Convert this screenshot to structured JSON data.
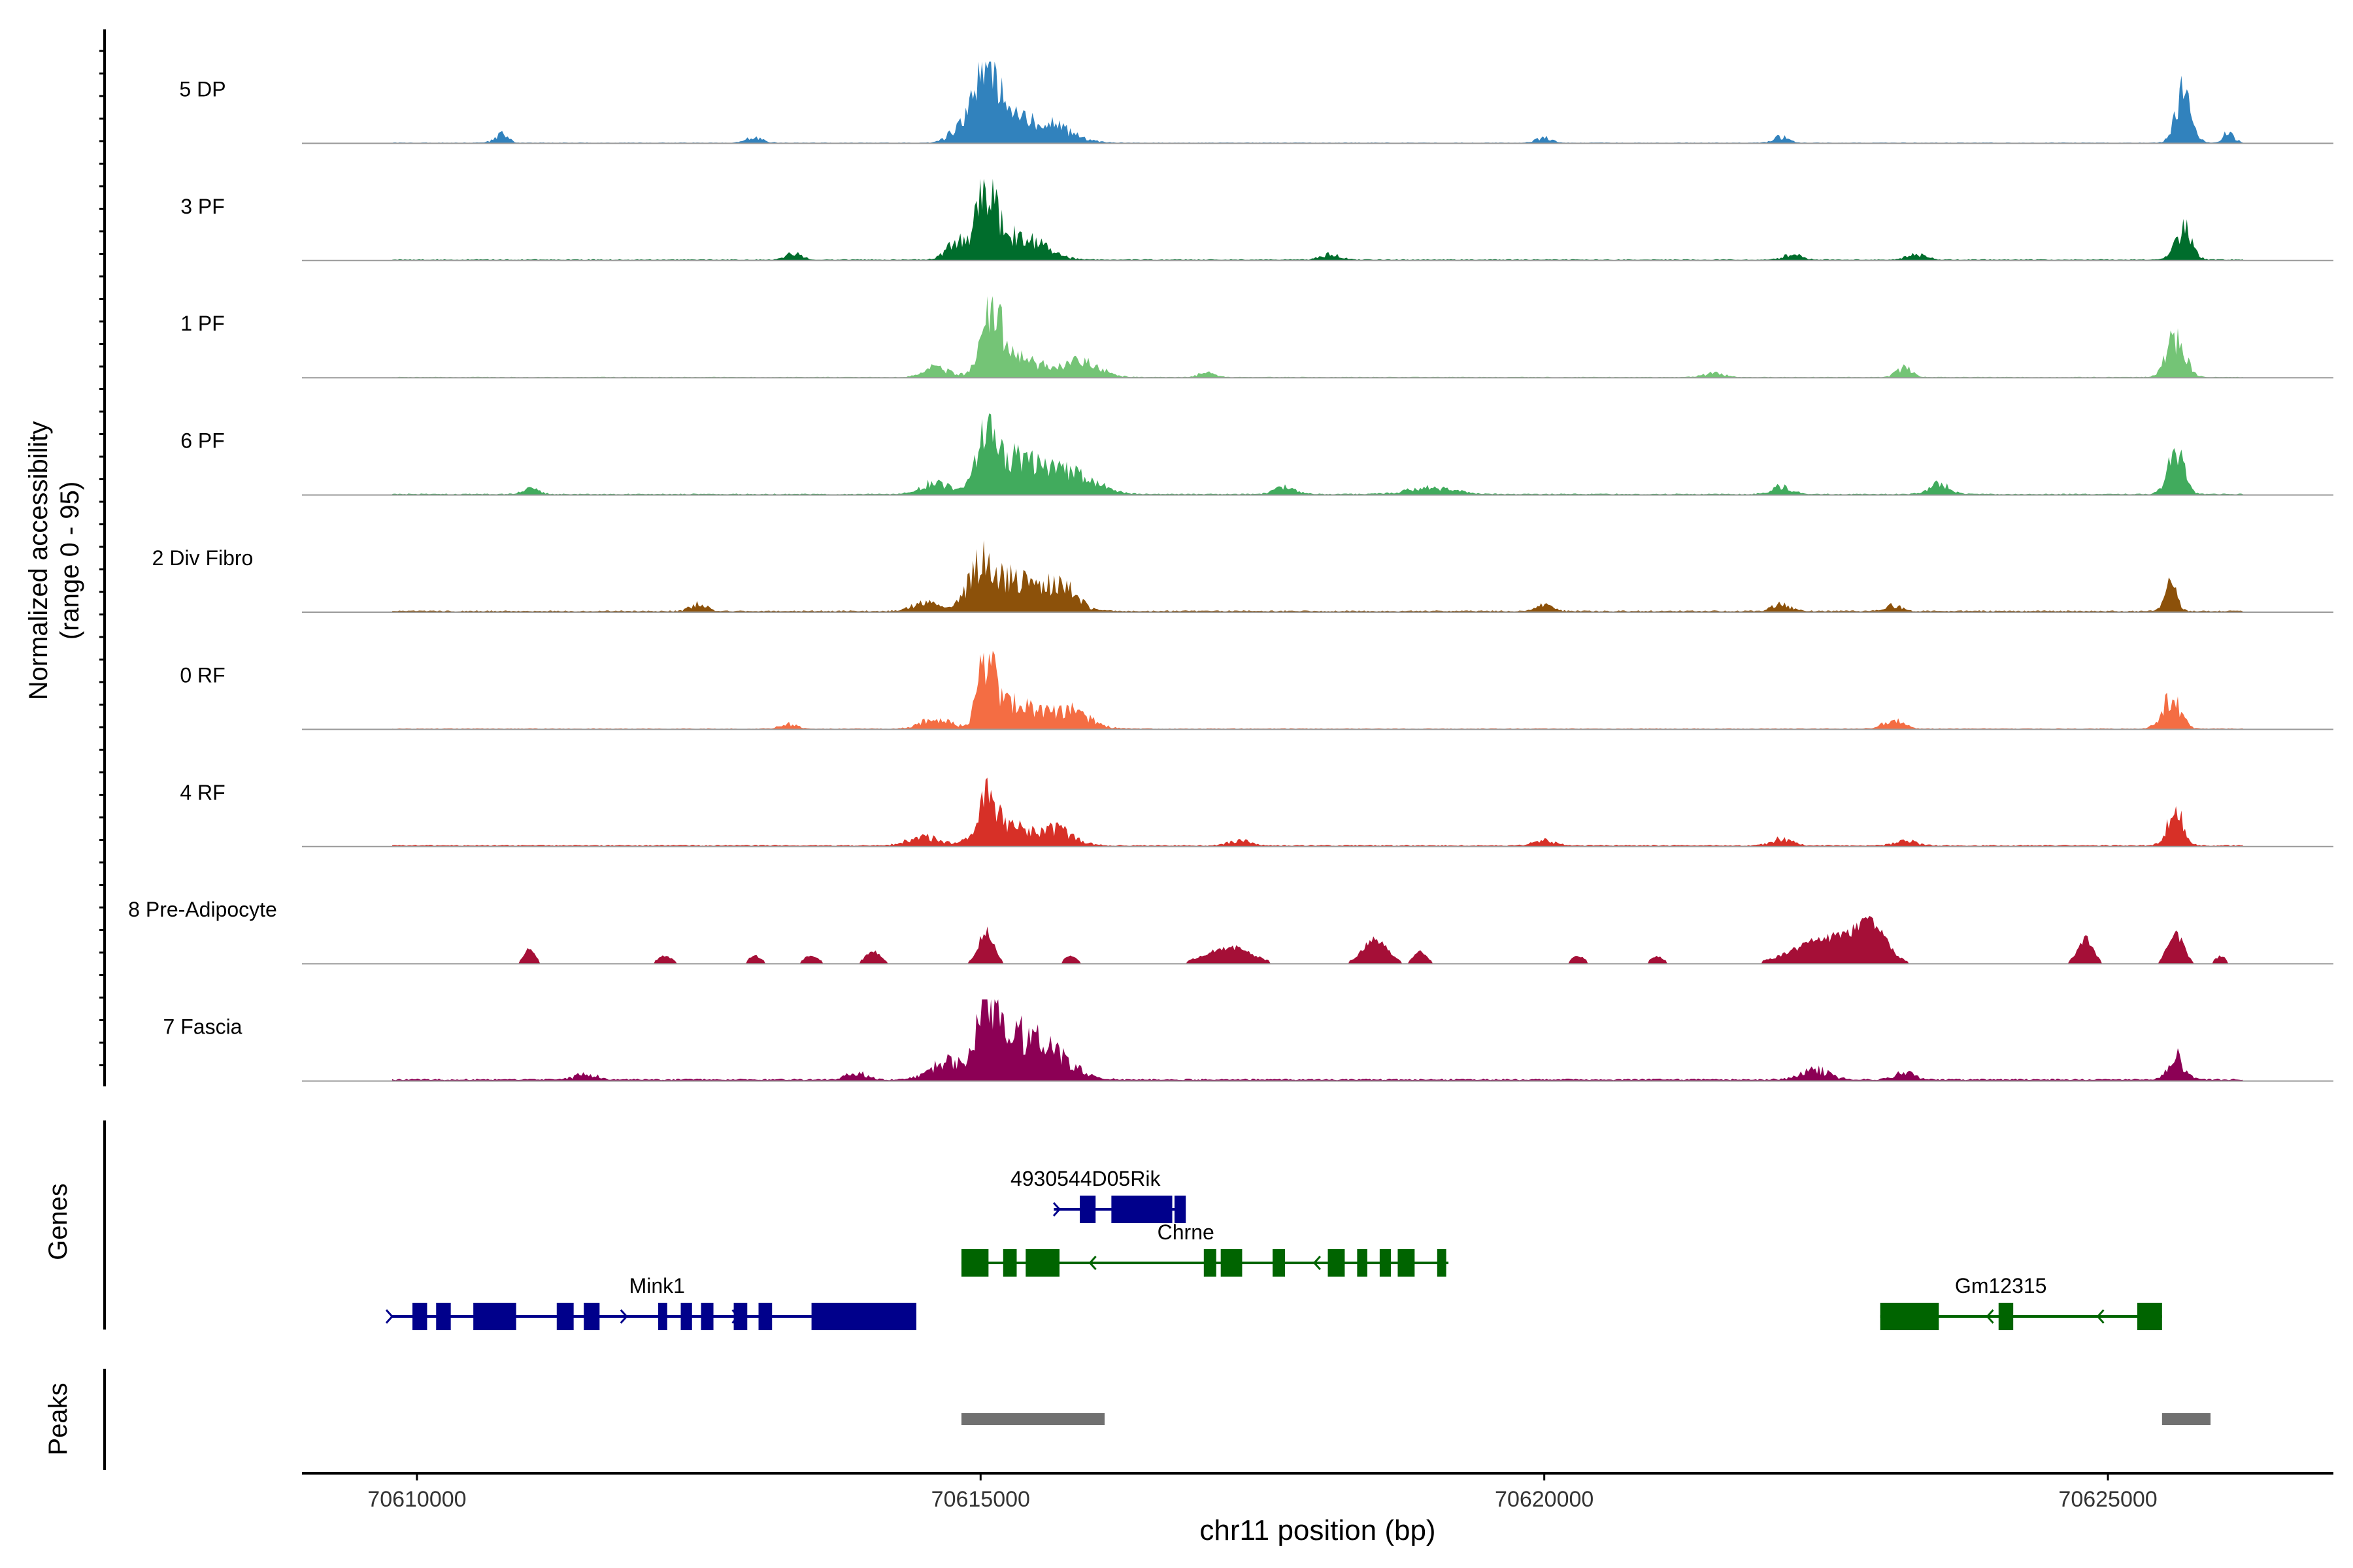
{
  "chart_data": {
    "type": "area",
    "title": "",
    "ylabel_line1": "Normalized accessibility",
    "ylabel_line2": "(range 0 - 95)",
    "ylim": [
      0,
      95
    ],
    "xlabel": "chr11 position (bp)",
    "xlim": [
      70608980,
      70627000
    ],
    "xticks": [
      70610000,
      70615000,
      70620000,
      70625000
    ],
    "xtick_labels": [
      "70610000",
      "70615000",
      "70620000",
      "70625000"
    ],
    "coverage_start": 70609780,
    "coverage_end": 70626200,
    "tracks": [
      {
        "name": "5 DP",
        "color": "#3182bd",
        "baseline": 0.8,
        "peaks": [
          [
            70615030,
            88,
            90
          ],
          [
            70615200,
            35,
            160
          ],
          [
            70615600,
            22,
            200
          ],
          [
            70614800,
            14,
            90
          ],
          [
            70625670,
            60,
            70
          ],
          [
            70626070,
            12,
            50
          ],
          [
            70610750,
            10,
            60
          ],
          [
            70613000,
            7,
            70
          ],
          [
            70620000,
            6,
            70
          ],
          [
            70622100,
            7,
            70
          ]
        ]
      },
      {
        "name": "3 PF",
        "color": "#006d2c",
        "baseline": 1.2,
        "peaks": [
          [
            70615050,
            75,
            90
          ],
          [
            70614800,
            20,
            100
          ],
          [
            70615350,
            28,
            200
          ],
          [
            70613350,
            8,
            70
          ],
          [
            70625670,
            38,
            70
          ],
          [
            70618100,
            7,
            80
          ],
          [
            70622200,
            6,
            80
          ],
          [
            70623300,
            7,
            80
          ]
        ]
      },
      {
        "name": "1 PF",
        "color": "#74c476",
        "baseline": 0.8,
        "peaks": [
          [
            70615100,
            72,
            80
          ],
          [
            70615300,
            25,
            220
          ],
          [
            70614600,
            12,
            100
          ],
          [
            70615900,
            18,
            160
          ],
          [
            70625600,
            48,
            80
          ],
          [
            70623200,
            12,
            70
          ],
          [
            70617000,
            6,
            70
          ],
          [
            70621500,
            5,
            90
          ]
        ]
      },
      {
        "name": "6 PF",
        "color": "#41ab5d",
        "baseline": 1.2,
        "peaks": [
          [
            70615050,
            66,
            90
          ],
          [
            70615350,
            42,
            180
          ],
          [
            70615800,
            28,
            200
          ],
          [
            70614600,
            14,
            120
          ],
          [
            70625600,
            52,
            70
          ],
          [
            70623500,
            12,
            90
          ],
          [
            70619000,
            8,
            200
          ],
          [
            70622100,
            9,
            90
          ],
          [
            70611000,
            7,
            70
          ],
          [
            70617700,
            8,
            90
          ]
        ]
      },
      {
        "name": "2 Div Fibro",
        "color": "#8c510a",
        "baseline": 1.5,
        "peaks": [
          [
            70615000,
            55,
            110
          ],
          [
            70615300,
            38,
            160
          ],
          [
            70615700,
            32,
            140
          ],
          [
            70614500,
            12,
            100
          ],
          [
            70625560,
            32,
            50
          ],
          [
            70622100,
            8,
            80
          ],
          [
            70612500,
            9,
            70
          ],
          [
            70620000,
            7,
            70
          ],
          [
            70623100,
            7,
            70
          ]
        ]
      },
      {
        "name": "0 RF",
        "color": "#f46d43",
        "baseline": 1.0,
        "peaks": [
          [
            70615050,
            75,
            70
          ],
          [
            70615300,
            30,
            200
          ],
          [
            70615800,
            22,
            160
          ],
          [
            70614600,
            12,
            120
          ],
          [
            70625560,
            38,
            80
          ],
          [
            70623100,
            10,
            90
          ],
          [
            70613300,
            6,
            70
          ]
        ]
      },
      {
        "name": "4 RF",
        "color": "#d73027",
        "baseline": 1.5,
        "peaks": [
          [
            70615050,
            47,
            90
          ],
          [
            70615300,
            22,
            200
          ],
          [
            70615700,
            16,
            140
          ],
          [
            70614500,
            10,
            140
          ],
          [
            70625600,
            42,
            70
          ],
          [
            70622100,
            8,
            90
          ],
          [
            70617300,
            6,
            90
          ],
          [
            70620000,
            6,
            90
          ],
          [
            70623200,
            6,
            90
          ]
        ]
      },
      {
        "name": "8 Pre-Adipocyte",
        "color": "#a50f37",
        "baseline": 0,
        "peaks": [
          [
            70615050,
            42,
            70
          ],
          [
            70622550,
            35,
            300
          ],
          [
            70622900,
            40,
            120
          ],
          [
            70618500,
            32,
            110
          ],
          [
            70624800,
            32,
            70
          ],
          [
            70625600,
            40,
            70
          ],
          [
            70611000,
            20,
            50
          ],
          [
            70617200,
            22,
            200
          ],
          [
            70614050,
            16,
            70
          ],
          [
            70618900,
            16,
            60
          ],
          [
            70613000,
            10,
            60
          ],
          [
            70613500,
            12,
            60
          ],
          [
            70612200,
            10,
            70
          ],
          [
            70615800,
            10,
            60
          ],
          [
            70620300,
            10,
            60
          ],
          [
            70621000,
            10,
            60
          ],
          [
            70626000,
            10,
            50
          ]
        ]
      },
      {
        "name": "7 Fascia",
        "color": "#8c0055",
        "baseline": 2.0,
        "peaks": [
          [
            70615050,
            100,
            80
          ],
          [
            70615300,
            42,
            200
          ],
          [
            70615600,
            30,
            200
          ],
          [
            70614700,
            22,
            140
          ],
          [
            70625600,
            27,
            70
          ],
          [
            70622400,
            12,
            120
          ],
          [
            70613900,
            8,
            90
          ],
          [
            70611500,
            7,
            90
          ],
          [
            70623200,
            8,
            90
          ]
        ]
      }
    ],
    "genes_label": "Genes",
    "genes": [
      {
        "name": "Mink1",
        "color": "#00008b",
        "strand": "+",
        "row": 2,
        "start": 70609780,
        "end": 70614430,
        "label_x": 70612130,
        "exons": [
          [
            70609960,
            70610090
          ],
          [
            70610170,
            70610300
          ],
          [
            70610500,
            70610880
          ],
          [
            70611240,
            70611390
          ],
          [
            70611480,
            70611620
          ],
          [
            70612140,
            70612220
          ],
          [
            70612340,
            70612440
          ],
          [
            70612520,
            70612630
          ],
          [
            70612810,
            70612930
          ],
          [
            70613030,
            70613150
          ],
          [
            70613500,
            70614430
          ]
        ]
      },
      {
        "name": "4930544D05Rik",
        "color": "#00008b",
        "strand": "+",
        "row": 0,
        "start": 70615650,
        "end": 70616800,
        "label_x": 70615930,
        "exons": [
          [
            70615880,
            70616020
          ],
          [
            70616160,
            70616700
          ],
          [
            70616720,
            70616820
          ]
        ]
      },
      {
        "name": "Chrne",
        "color": "#006400",
        "strand": "-",
        "row": 1,
        "start": 70614830,
        "end": 70619150,
        "label_x": 70616820,
        "exons": [
          [
            70614830,
            70615070
          ],
          [
            70615200,
            70615320
          ],
          [
            70615400,
            70615700
          ],
          [
            70616980,
            70617090
          ],
          [
            70617130,
            70617320
          ],
          [
            70617590,
            70617700
          ],
          [
            70618080,
            70618230
          ],
          [
            70618340,
            70618430
          ],
          [
            70618540,
            70618640
          ],
          [
            70618700,
            70618850
          ],
          [
            70619050,
            70619130
          ]
        ]
      },
      {
        "name": "Gm12315",
        "color": "#006400",
        "strand": "-",
        "row": 2,
        "start": 70622980,
        "end": 70625480,
        "label_x": 70624050,
        "exons": [
          [
            70622980,
            70623500
          ],
          [
            70624030,
            70624160
          ],
          [
            70625260,
            70625480
          ]
        ]
      }
    ],
    "peaks_label": "Peaks",
    "peaks_color": "#707070",
    "peak_regions": [
      [
        70614830,
        70616100
      ],
      [
        70625480,
        70625910
      ]
    ]
  }
}
